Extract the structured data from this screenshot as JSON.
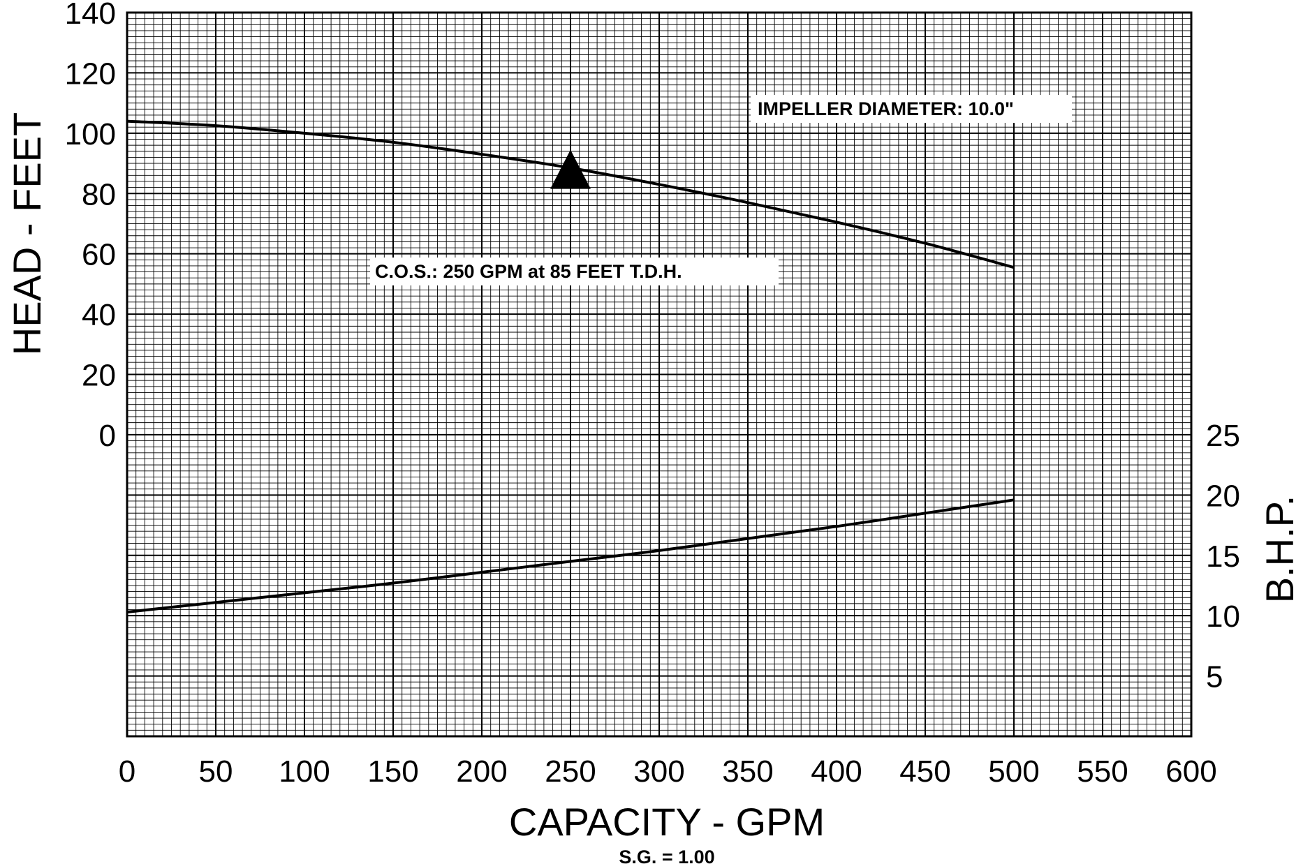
{
  "chart_data": {
    "type": "line",
    "xlabel": "CAPACITY - GPM",
    "ylabel_left": "HEAD - FEET",
    "ylabel_right": "B.H.P.",
    "xlim": [
      0,
      600
    ],
    "x_ticks": [
      "0",
      "50",
      "100",
      "150",
      "200",
      "250",
      "300",
      "350",
      "400",
      "450",
      "500",
      "550",
      "600"
    ],
    "head_axis": {
      "ylim": [
        0,
        140
      ],
      "ticks": [
        "0",
        "20",
        "40",
        "60",
        "80",
        "100",
        "120",
        "140"
      ]
    },
    "bhp_axis": {
      "ylim": [
        0,
        25
      ],
      "ticks": [
        "5",
        "10",
        "15",
        "20",
        "25"
      ]
    },
    "grid": true,
    "series": [
      {
        "axis": "head",
        "x": [
          0,
          50,
          100,
          150,
          200,
          250,
          300,
          350,
          400,
          450,
          500
        ],
        "y": [
          104,
          102.5,
          100,
          97,
          93,
          88.5,
          83,
          77,
          70.5,
          63.5,
          55.5
        ]
      },
      {
        "axis": "bhp",
        "x": [
          0,
          50,
          100,
          150,
          200,
          250,
          300,
          350,
          400,
          450,
          500
        ],
        "y": [
          10.3,
          11.1,
          11.9,
          12.7,
          13.6,
          14.5,
          15.4,
          16.4,
          17.4,
          18.5,
          19.6
        ]
      }
    ],
    "operating_point": {
      "x": 250,
      "y": 85,
      "marker": "triangle-up"
    },
    "annotations": {
      "impeller": "IMPELLER DIAMETER:  10.0\"",
      "cos": "C.O.S.:  250 GPM   at   85 FEET T.D.H."
    },
    "footnote": "S.G. = 1.00"
  }
}
